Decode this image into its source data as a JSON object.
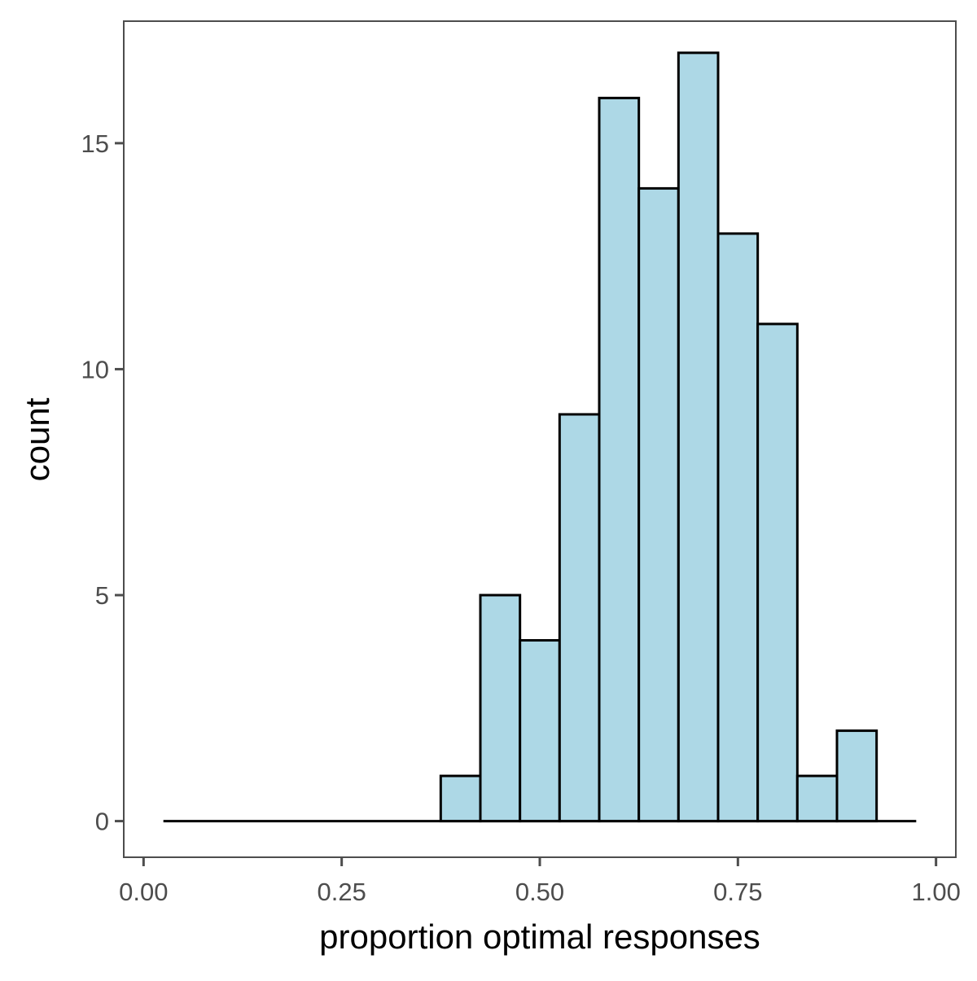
{
  "chart_data": {
    "type": "bar",
    "subtype": "histogram",
    "xlabel": "proportion optimal responses",
    "ylabel": "count",
    "xlim": [
      -0.025,
      1.025
    ],
    "ylim": [
      -0.8,
      17.7
    ],
    "x_ticks": [
      0.0,
      0.25,
      0.5,
      0.75,
      1.0
    ],
    "x_tick_labels": [
      "0.00",
      "0.25",
      "0.50",
      "0.75",
      "1.00"
    ],
    "y_ticks": [
      0,
      5,
      10,
      15
    ],
    "y_tick_labels": [
      "0",
      "5",
      "10",
      "15"
    ],
    "bin_width": 0.05,
    "bin_centers": [
      0.05,
      0.1,
      0.15,
      0.2,
      0.25,
      0.3,
      0.35,
      0.4,
      0.45,
      0.5,
      0.55,
      0.6,
      0.65,
      0.7,
      0.75,
      0.8,
      0.85,
      0.9,
      0.95
    ],
    "values": [
      0,
      0,
      0,
      0,
      0,
      0,
      0,
      1,
      5,
      4,
      9,
      16,
      14,
      17,
      13,
      11,
      1,
      2,
      0
    ],
    "bar_fill": "#add8e6",
    "bar_outline": "#000000",
    "grid": false,
    "legend": "none"
  }
}
